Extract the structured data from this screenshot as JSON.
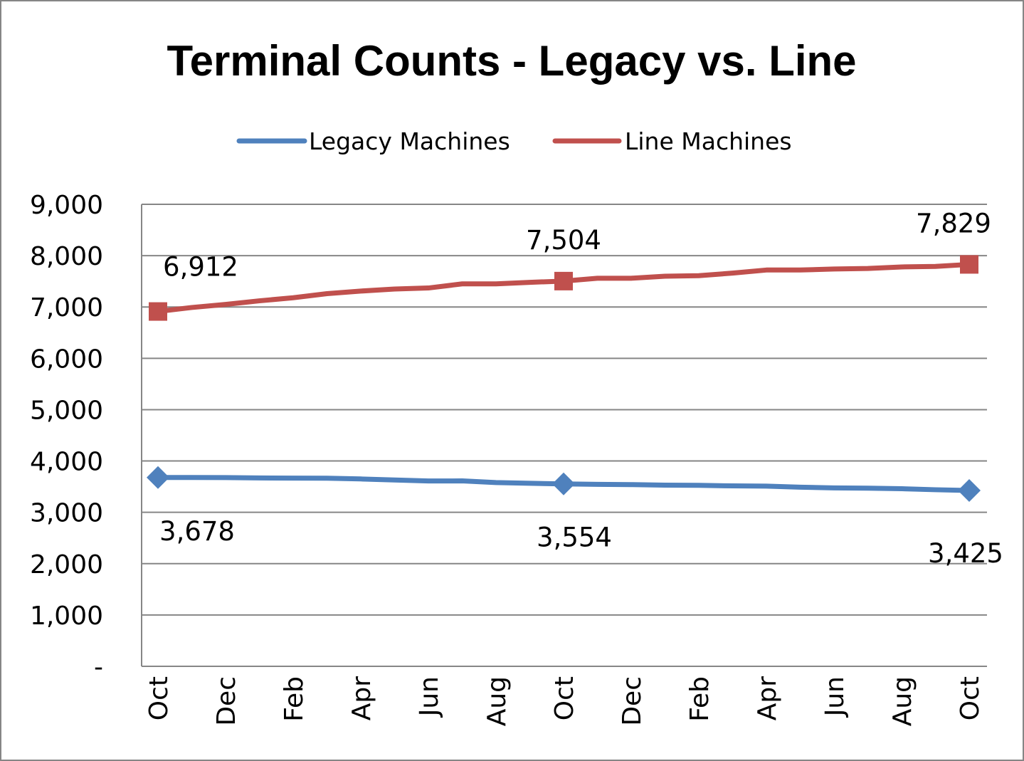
{
  "chart_data": {
    "type": "line",
    "title": "Terminal Counts - Legacy vs. Line",
    "xlabel": "",
    "ylabel": "",
    "ylim": [
      0,
      9000
    ],
    "yticks": [
      "-",
      "1,000",
      "2,000",
      "3,000",
      "4,000",
      "5,000",
      "6,000",
      "7,000",
      "8,000",
      "9,000"
    ],
    "ytick_values": [
      0,
      1000,
      2000,
      3000,
      4000,
      5000,
      6000,
      7000,
      8000,
      9000
    ],
    "xtick_labels": [
      "Oct",
      "Dec",
      "Feb",
      "Apr",
      "Jun",
      "Aug",
      "Oct",
      "Dec",
      "Feb",
      "Apr",
      "Jun",
      "Aug",
      "Oct"
    ],
    "grid": true,
    "legend_position": "top",
    "series": [
      {
        "name": "Legacy Machines",
        "color": "#4F81BD",
        "marker": "diamond",
        "values": [
          3678,
          3678,
          3676,
          3670,
          3666,
          3664,
          3650,
          3630,
          3610,
          3612,
          3580,
          3565,
          3554,
          3545,
          3540,
          3530,
          3525,
          3515,
          3510,
          3490,
          3475,
          3470,
          3460,
          3440,
          3425
        ],
        "labels": [
          {
            "index": 0,
            "text": "3,678"
          },
          {
            "index": 12,
            "text": "3,554"
          },
          {
            "index": 24,
            "text": "3,425"
          }
        ]
      },
      {
        "name": "Line Machines",
        "color": "#C0504D",
        "marker": "square",
        "values": [
          6912,
          6990,
          7050,
          7120,
          7180,
          7260,
          7310,
          7350,
          7370,
          7450,
          7450,
          7480,
          7504,
          7560,
          7560,
          7600,
          7610,
          7660,
          7720,
          7720,
          7740,
          7750,
          7780,
          7790,
          7829
        ],
        "labels": [
          {
            "index": 0,
            "text": "6,912"
          },
          {
            "index": 12,
            "text": "7,504"
          },
          {
            "index": 24,
            "text": "7,829"
          }
        ]
      }
    ]
  }
}
